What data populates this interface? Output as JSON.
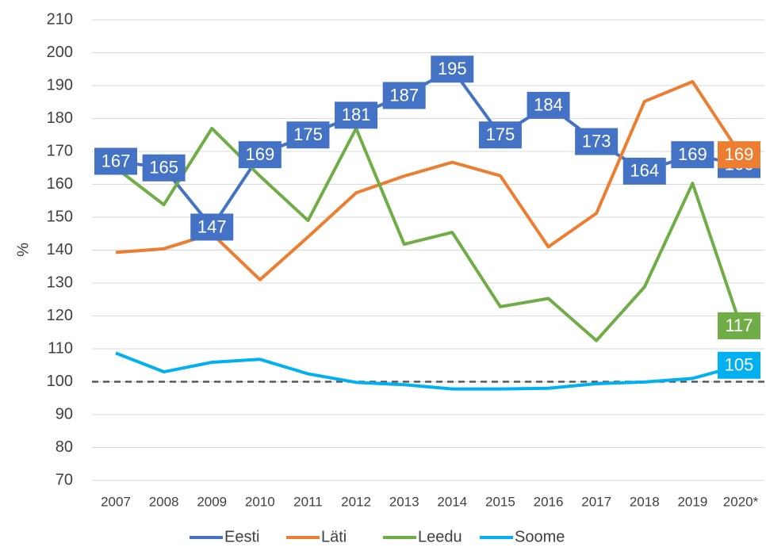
{
  "chart_data": {
    "type": "line",
    "y_label": "%",
    "categories": [
      "2007",
      "2008",
      "2009",
      "2010",
      "2011",
      "2012",
      "2013",
      "2014",
      "2015",
      "2016",
      "2017",
      "2018",
      "2019",
      "2020*"
    ],
    "series": [
      {
        "name": "Eesti",
        "color": "#4472c4",
        "data_labels": "all",
        "values": [
          167,
          165,
          147,
          169,
          175,
          181,
          187,
          195,
          175,
          184,
          173,
          164,
          169,
          166
        ]
      },
      {
        "name": "Läti",
        "color": "#ed7d31",
        "data_labels": "last",
        "values": [
          139.3,
          140.4,
          145,
          131,
          144,
          157.4,
          162.5,
          166.7,
          162.6,
          141,
          151.2,
          185.2,
          191.2,
          169
        ]
      },
      {
        "name": "Leedu",
        "color": "#70ad47",
        "data_labels": "last",
        "values": [
          165,
          153.8,
          177,
          162.5,
          149,
          177,
          141.8,
          145.4,
          122.8,
          125.3,
          112.5,
          128.8,
          160.3,
          117
        ]
      },
      {
        "name": "Soome",
        "color": "#00b0f0",
        "data_labels": "last",
        "values": [
          108.7,
          103,
          105.9,
          106.8,
          102.4,
          99.8,
          99.1,
          97.8,
          97.8,
          98,
          99.4,
          99.9,
          101,
          105
        ]
      }
    ],
    "reference_line": 100,
    "ylim": [
      70,
      210
    ],
    "yticks": [
      70,
      80,
      90,
      100,
      110,
      120,
      130,
      140,
      150,
      160,
      170,
      180,
      190,
      200,
      210
    ],
    "grid": true,
    "legend": "bottom"
  }
}
